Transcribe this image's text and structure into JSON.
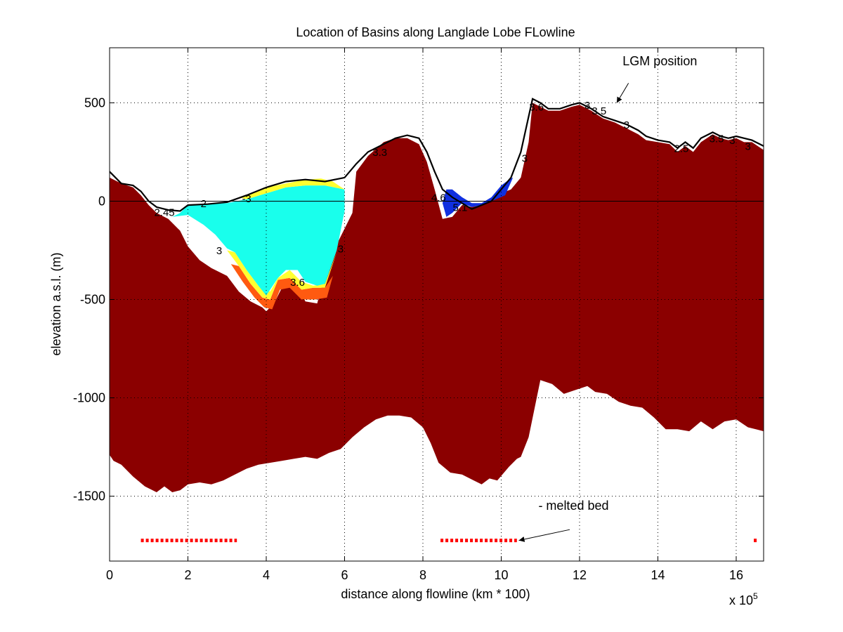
{
  "chart_data": {
    "type": "area",
    "title": "Location of Basins along Langlade Lobe FLowline",
    "xlabel": "distance along flowline (km * 100)",
    "ylabel": "elevation a.s.l. (m)",
    "x_multiplier_label": "x 10",
    "x_multiplier_exponent": "5",
    "xlim": [
      0,
      16.7
    ],
    "ylim": [
      -1830,
      780
    ],
    "x_ticks": [
      0,
      2,
      4,
      6,
      8,
      10,
      12,
      14,
      16
    ],
    "y_ticks": [
      500,
      0,
      -500,
      -1000,
      -1500
    ],
    "x_tick_labels": [
      "0",
      "2",
      "4",
      "6",
      "8",
      "10",
      "12",
      "14",
      "16"
    ],
    "y_tick_labels": [
      "500",
      "0",
      "-500",
      "-1000",
      "-1500"
    ],
    "grid": true,
    "colors": {
      "bed": "#8b0000",
      "water_cyan": "#19ffec",
      "water_blue": "#1030e0",
      "fringe_yellow": "#ffff30",
      "fringe_orange": "#ff5a10",
      "melted": "#ff0000",
      "grid": "#000000"
    },
    "ice_surface": {
      "x": [
        0,
        0.3,
        0.6,
        0.8,
        1.0,
        1.2,
        1.5,
        1.8,
        2.0,
        2.5,
        3.0,
        3.5,
        4.0,
        4.5,
        5.0,
        5.5,
        6.0,
        6.3,
        6.6,
        7.0,
        7.3,
        7.6,
        7.9,
        8.1,
        8.3,
        8.5,
        8.75,
        9.0,
        9.25,
        9.5,
        9.75,
        10.0,
        10.25,
        10.5,
        10.7,
        10.8,
        11.0,
        11.2,
        11.5,
        11.8,
        12.0,
        12.3,
        12.6,
        12.9,
        13.2,
        13.5,
        13.7,
        14.0,
        14.3,
        14.5,
        14.7,
        14.9,
        15.1,
        15.4,
        15.6,
        15.8,
        16.0,
        16.2,
        16.4,
        16.7
      ],
      "y": [
        150,
        90,
        80,
        50,
        0,
        -30,
        -45,
        -50,
        -20,
        -15,
        -5,
        30,
        70,
        100,
        110,
        100,
        120,
        190,
        250,
        290,
        320,
        335,
        320,
        250,
        150,
        60,
        20,
        -10,
        -40,
        -20,
        0,
        60,
        120,
        250,
        430,
        520,
        500,
        470,
        470,
        490,
        500,
        470,
        430,
        410,
        390,
        360,
        330,
        310,
        300,
        270,
        300,
        270,
        320,
        350,
        330,
        320,
        330,
        320,
        310,
        280
      ]
    },
    "bed_top": {
      "x": [
        0,
        0.3,
        0.6,
        0.8,
        1.0,
        1.2,
        1.5,
        1.8,
        2.0,
        2.3,
        2.6,
        3.0,
        3.3,
        3.6,
        3.9,
        4.0,
        4.2,
        4.5,
        4.7,
        5.0,
        5.3,
        5.6,
        5.9,
        6.2,
        6.3,
        6.6,
        7.0,
        7.3,
        7.6,
        7.9,
        8.1,
        8.3,
        8.5,
        8.75,
        9.0,
        9.25,
        9.5,
        9.75,
        10.0,
        10.25,
        10.5,
        10.7,
        10.8,
        11.0,
        11.2,
        11.5,
        11.8,
        12.0,
        12.3,
        12.6,
        12.9,
        13.2,
        13.5,
        13.7,
        14.0,
        14.3,
        14.5,
        14.7,
        14.9,
        15.1,
        15.4,
        15.6,
        15.8,
        16.0,
        16.2,
        16.4,
        16.7
      ],
      "y": [
        120,
        90,
        70,
        30,
        -20,
        -60,
        -90,
        -150,
        -230,
        -300,
        -340,
        -380,
        -460,
        -510,
        -540,
        -560,
        -520,
        -400,
        -390,
        -510,
        -520,
        -300,
        -180,
        -60,
        150,
        230,
        300,
        320,
        320,
        290,
        200,
        60,
        -90,
        -80,
        -20,
        -30,
        -20,
        0,
        40,
        60,
        120,
        300,
        500,
        480,
        460,
        460,
        480,
        490,
        460,
        420,
        400,
        370,
        340,
        310,
        300,
        290,
        250,
        280,
        250,
        300,
        340,
        320,
        310,
        320,
        300,
        300,
        260
      ]
    },
    "bed_bottom": {
      "x": [
        0,
        0.1,
        0.3,
        0.6,
        0.9,
        1.2,
        1.4,
        1.6,
        1.8,
        2.0,
        2.3,
        2.6,
        2.9,
        3.2,
        3.5,
        3.8,
        4.1,
        4.4,
        4.7,
        5.0,
        5.3,
        5.6,
        5.9,
        6.2,
        6.5,
        6.8,
        7.1,
        7.4,
        7.7,
        8.0,
        8.2,
        8.4,
        8.7,
        9.0,
        9.3,
        9.5,
        9.7,
        9.9,
        10.2,
        10.4,
        10.5,
        10.7,
        11.0,
        11.3,
        11.6,
        11.9,
        12.2,
        12.4,
        12.7,
        13.0,
        13.3,
        13.6,
        13.9,
        14.2,
        14.5,
        14.8,
        15.1,
        15.4,
        15.7,
        16.0,
        16.3,
        16.5,
        16.7
      ],
      "y": [
        -1290,
        -1320,
        -1340,
        -1400,
        -1450,
        -1480,
        -1450,
        -1480,
        -1470,
        -1440,
        -1430,
        -1440,
        -1420,
        -1390,
        -1360,
        -1340,
        -1330,
        -1320,
        -1310,
        -1300,
        -1310,
        -1280,
        -1260,
        -1200,
        -1150,
        -1110,
        -1090,
        -1090,
        -1100,
        -1150,
        -1230,
        -1330,
        -1380,
        -1390,
        -1420,
        -1440,
        -1410,
        -1420,
        -1350,
        -1310,
        -1300,
        -1200,
        -910,
        -930,
        -980,
        -960,
        -940,
        -970,
        -980,
        -1020,
        -1040,
        -1050,
        -1100,
        -1160,
        -1160,
        -1170,
        -1120,
        -1160,
        -1120,
        -1110,
        -1150,
        -1160,
        -1170
      ]
    },
    "water_cyan": {
      "x": [
        1.6,
        1.8,
        2.0,
        2.5,
        3.0,
        3.5,
        4.0,
        4.5,
        5.0,
        5.5,
        6.0,
        6.0,
        5.8,
        5.5,
        5.3,
        5.0,
        4.8,
        4.5,
        4.3,
        4.0,
        3.8,
        3.5,
        3.2,
        3.0,
        2.7,
        2.4,
        2.0
      ],
      "y": [
        -80,
        -60,
        -20,
        -15,
        -10,
        10,
        40,
        70,
        80,
        80,
        60,
        -50,
        -250,
        -420,
        -430,
        -410,
        -350,
        -350,
        -390,
        -480,
        -430,
        -350,
        -260,
        -240,
        -170,
        -120,
        -70
      ]
    },
    "fringe_yellow": {
      "x": [
        3.3,
        3.6,
        4.0,
        4.5,
        5.0,
        5.4,
        5.7,
        6.0,
        6.2,
        6.0,
        5.5,
        5.0,
        4.5,
        4.0,
        3.5
      ],
      "y": [
        20,
        40,
        70,
        90,
        110,
        115,
        100,
        60,
        120,
        60,
        80,
        80,
        70,
        40,
        10
      ]
    },
    "fringe_yellow_bottom": {
      "x": [
        3.0,
        3.3,
        3.6,
        3.9,
        4.1,
        4.3,
        4.6,
        4.9,
        5.2,
        5.5,
        5.8,
        5.5,
        5.2,
        4.9,
        4.6,
        4.3,
        4.1,
        3.8,
        3.5,
        3.2
      ],
      "y": [
        -250,
        -330,
        -420,
        -490,
        -500,
        -400,
        -390,
        -450,
        -440,
        -440,
        -260,
        -420,
        -430,
        -410,
        -350,
        -390,
        -460,
        -430,
        -350,
        -260
      ]
    },
    "fringe_orange_bottom": {
      "x": [
        3.1,
        3.4,
        3.7,
        3.95,
        4.15,
        4.35,
        4.6,
        4.9,
        5.25,
        5.55,
        5.7,
        5.5,
        5.2,
        4.9,
        4.6,
        4.3,
        4.1,
        3.9,
        3.6,
        3.3
      ],
      "y": [
        -320,
        -410,
        -490,
        -540,
        -550,
        -450,
        -440,
        -500,
        -500,
        -490,
        -380,
        -440,
        -440,
        -450,
        -390,
        -400,
        -500,
        -490,
        -420,
        -330
      ]
    },
    "water_blue": {
      "x": [
        8.5,
        8.6,
        8.75,
        9.0,
        9.25,
        9.5,
        9.75,
        10.0,
        10.2,
        10.3,
        10.1,
        9.75,
        9.5,
        9.25,
        9.0,
        8.75,
        8.6
      ],
      "y": [
        -10,
        60,
        60,
        20,
        -10,
        -10,
        20,
        80,
        110,
        120,
        30,
        0,
        -20,
        -30,
        -10,
        -60,
        -80
      ]
    },
    "contour_labels": [
      {
        "text": "2.45",
        "x": 1.4,
        "y": -75
      },
      {
        "text": "2",
        "x": 2.4,
        "y": -30
      },
      {
        "text": "-3",
        "x": 3.5,
        "y": -5
      },
      {
        "text": "3",
        "x": 2.8,
        "y": -270
      },
      {
        "text": "3.6",
        "x": 4.8,
        "y": -430
      },
      {
        "text": "3",
        "x": 5.9,
        "y": -260
      },
      {
        "text": "3.3",
        "x": 6.9,
        "y": 230
      },
      {
        "text": "4.6",
        "x": 8.4,
        "y": 0
      },
      {
        "text": "5.1",
        "x": 8.95,
        "y": -50
      },
      {
        "text": "3",
        "x": 10.6,
        "y": 200
      },
      {
        "text": "3.6",
        "x": 10.9,
        "y": 460
      },
      {
        "text": "3",
        "x": 12.2,
        "y": 470
      },
      {
        "text": "3.5",
        "x": 12.5,
        "y": 440
      },
      {
        "text": "3",
        "x": 13.2,
        "y": 370
      },
      {
        "text": "2.5",
        "x": 14.6,
        "y": 250
      },
      {
        "text": "3.5",
        "x": 15.5,
        "y": 300
      },
      {
        "text": "3",
        "x": 15.9,
        "y": 290
      },
      {
        "text": "3",
        "x": 16.3,
        "y": 260
      }
    ],
    "melted_bed": {
      "y": -1725,
      "segments": [
        [
          0.8,
          3.25
        ],
        [
          8.45,
          10.4
        ],
        [
          16.45,
          16.55
        ]
      ]
    },
    "annotations": [
      {
        "text": "LGM position",
        "x": 13.1,
        "y": 690,
        "arrow_from": [
          13.25,
          600
        ],
        "arrow_to": [
          12.95,
          500
        ]
      },
      {
        "text": "- melted bed",
        "x": 10.95,
        "y": -1570,
        "arrow_from": [
          11.75,
          -1670
        ],
        "arrow_to": [
          10.45,
          -1725
        ]
      }
    ]
  }
}
